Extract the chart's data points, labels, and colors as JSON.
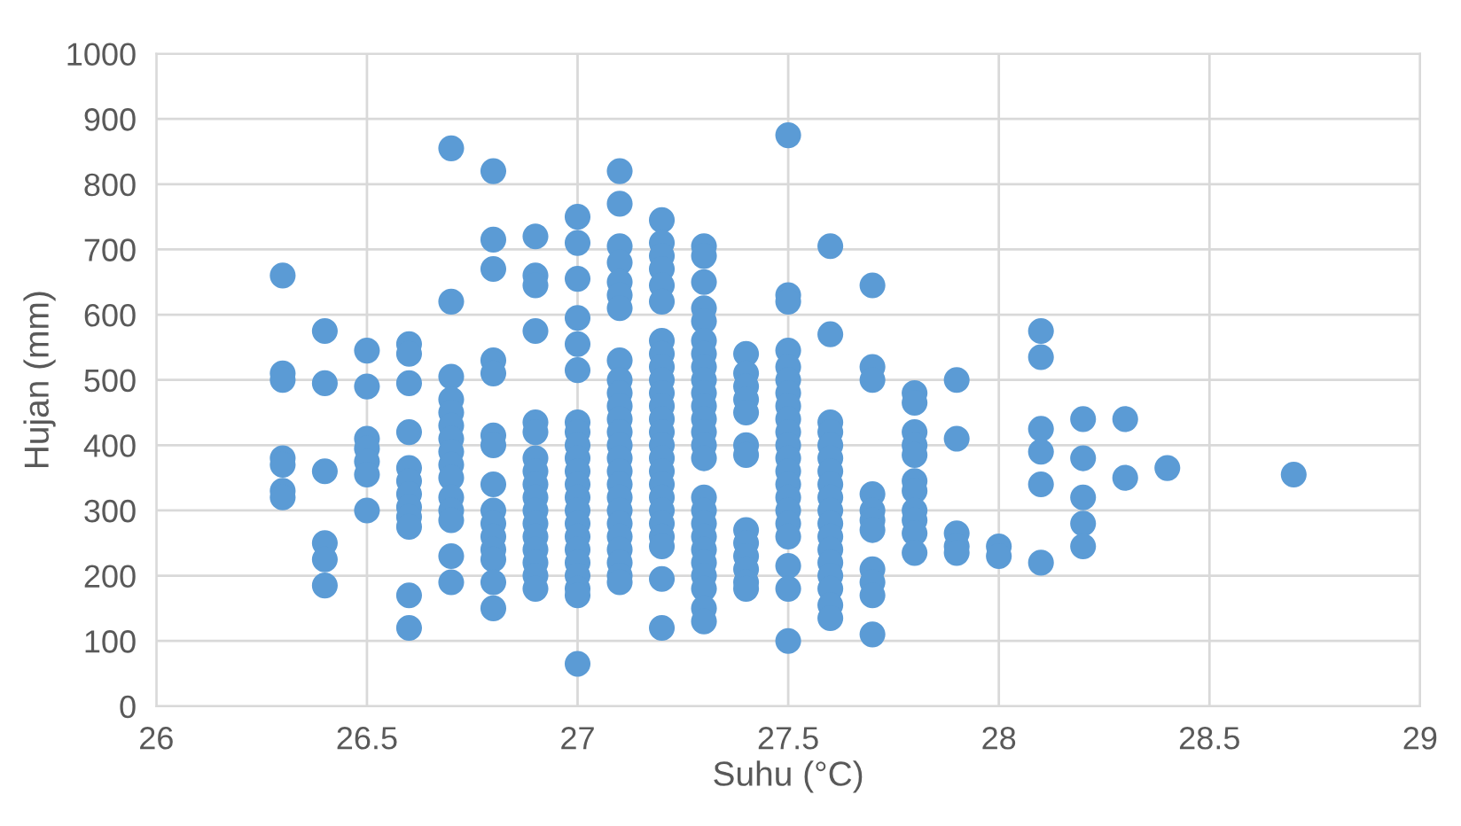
{
  "chart_data": {
    "type": "scatter",
    "xlabel": "Suhu (°C)",
    "ylabel": "Hujan (mm)",
    "xlim": [
      26,
      29
    ],
    "xticks": [
      26,
      26.5,
      27,
      27.5,
      28,
      28.5,
      29
    ],
    "ylim": [
      0,
      1000
    ],
    "yticks": [
      0,
      100,
      200,
      300,
      400,
      500,
      600,
      700,
      800,
      900,
      1000
    ],
    "grid": true,
    "marker": "circle",
    "series": [
      {
        "color": "#5b9bd5",
        "x": [
          26.3,
          26.3,
          26.3,
          26.3,
          26.3,
          26.3,
          26.3,
          26.4,
          26.4,
          26.4,
          26.4,
          26.4,
          26.4,
          26.5,
          26.5,
          26.5,
          26.5,
          26.5,
          26.5,
          26.5,
          26.6,
          26.6,
          26.6,
          26.6,
          26.6,
          26.6,
          26.6,
          26.6,
          26.6,
          26.6,
          26.6,
          26.6,
          26.7,
          26.7,
          26.7,
          26.7,
          26.7,
          26.7,
          26.7,
          26.7,
          26.7,
          26.7,
          26.7,
          26.7,
          26.7,
          26.7,
          26.7,
          26.8,
          26.8,
          26.8,
          26.8,
          26.8,
          26.8,
          26.8,
          26.8,
          26.8,
          26.8,
          26.8,
          26.8,
          26.8,
          26.8,
          26.8,
          26.9,
          26.9,
          26.9,
          26.9,
          26.9,
          26.9,
          26.9,
          26.9,
          26.9,
          26.9,
          26.9,
          26.9,
          26.9,
          26.9,
          26.9,
          26.9,
          26.9,
          27.0,
          27.0,
          27.0,
          27.0,
          27.0,
          27.0,
          27.0,
          27.0,
          27.0,
          27.0,
          27.0,
          27.0,
          27.0,
          27.0,
          27.0,
          27.0,
          27.0,
          27.0,
          27.0,
          27.0,
          27.0,
          27.0,
          27.1,
          27.1,
          27.1,
          27.1,
          27.1,
          27.1,
          27.1,
          27.1,
          27.1,
          27.1,
          27.1,
          27.1,
          27.1,
          27.1,
          27.1,
          27.1,
          27.1,
          27.1,
          27.1,
          27.1,
          27.1,
          27.1,
          27.1,
          27.1,
          27.1,
          27.2,
          27.2,
          27.2,
          27.2,
          27.2,
          27.2,
          27.2,
          27.2,
          27.2,
          27.2,
          27.2,
          27.2,
          27.2,
          27.2,
          27.2,
          27.2,
          27.2,
          27.2,
          27.2,
          27.2,
          27.2,
          27.2,
          27.2,
          27.2,
          27.2,
          27.3,
          27.3,
          27.3,
          27.3,
          27.3,
          27.3,
          27.3,
          27.3,
          27.3,
          27.3,
          27.3,
          27.3,
          27.3,
          27.3,
          27.3,
          27.3,
          27.3,
          27.3,
          27.3,
          27.3,
          27.3,
          27.3,
          27.3,
          27.3,
          27.3,
          27.4,
          27.4,
          27.4,
          27.4,
          27.4,
          27.4,
          27.4,
          27.4,
          27.4,
          27.4,
          27.4,
          27.4,
          27.4,
          27.5,
          27.5,
          27.5,
          27.5,
          27.5,
          27.5,
          27.5,
          27.5,
          27.5,
          27.5,
          27.5,
          27.5,
          27.5,
          27.5,
          27.5,
          27.5,
          27.5,
          27.5,
          27.5,
          27.5,
          27.5,
          27.6,
          27.6,
          27.6,
          27.6,
          27.6,
          27.6,
          27.6,
          27.6,
          27.6,
          27.6,
          27.6,
          27.6,
          27.6,
          27.6,
          27.6,
          27.6,
          27.6,
          27.6,
          27.7,
          27.7,
          27.7,
          27.7,
          27.7,
          27.7,
          27.7,
          27.7,
          27.7,
          27.7,
          27.7,
          27.8,
          27.8,
          27.8,
          27.8,
          27.8,
          27.8,
          27.8,
          27.8,
          27.8,
          27.8,
          27.8,
          27.9,
          27.9,
          27.9,
          27.9,
          27.9,
          28.0,
          28.0,
          28.1,
          28.1,
          28.1,
          28.1,
          28.1,
          28.1,
          28.2,
          28.2,
          28.2,
          28.2,
          28.2,
          28.3,
          28.3,
          28.4,
          28.7
        ],
        "values": [
          660,
          510,
          500,
          380,
          370,
          330,
          320,
          575,
          495,
          360,
          250,
          225,
          185,
          545,
          490,
          410,
          395,
          375,
          355,
          300,
          555,
          540,
          495,
          420,
          365,
          345,
          325,
          305,
          290,
          275,
          170,
          120,
          855,
          620,
          505,
          470,
          450,
          430,
          410,
          390,
          370,
          350,
          320,
          300,
          285,
          230,
          190,
          820,
          715,
          670,
          530,
          510,
          415,
          400,
          340,
          300,
          280,
          260,
          240,
          225,
          190,
          150,
          720,
          660,
          645,
          575,
          435,
          420,
          380,
          360,
          340,
          320,
          300,
          280,
          260,
          240,
          220,
          200,
          180,
          750,
          710,
          655,
          595,
          555,
          515,
          435,
          420,
          400,
          380,
          360,
          340,
          320,
          300,
          280,
          260,
          240,
          220,
          200,
          180,
          170,
          65,
          820,
          770,
          705,
          680,
          650,
          630,
          610,
          530,
          500,
          480,
          460,
          440,
          420,
          400,
          380,
          360,
          340,
          320,
          300,
          280,
          260,
          240,
          220,
          200,
          190,
          745,
          710,
          690,
          670,
          645,
          620,
          560,
          540,
          520,
          500,
          480,
          460,
          440,
          420,
          400,
          380,
          360,
          340,
          320,
          300,
          280,
          260,
          245,
          195,
          120,
          705,
          690,
          650,
          610,
          590,
          560,
          540,
          520,
          500,
          480,
          460,
          440,
          420,
          400,
          380,
          320,
          300,
          280,
          260,
          240,
          220,
          200,
          180,
          150,
          130,
          540,
          510,
          490,
          470,
          450,
          400,
          385,
          270,
          250,
          230,
          210,
          190,
          180,
          875,
          630,
          620,
          545,
          520,
          500,
          480,
          460,
          440,
          420,
          400,
          380,
          360,
          340,
          320,
          300,
          280,
          260,
          215,
          180,
          100,
          705,
          570,
          435,
          420,
          400,
          380,
          360,
          340,
          320,
          300,
          280,
          260,
          240,
          220,
          200,
          180,
          155,
          135,
          645,
          520,
          500,
          325,
          300,
          285,
          270,
          210,
          190,
          170,
          110,
          480,
          465,
          420,
          400,
          385,
          345,
          330,
          300,
          285,
          265,
          235,
          500,
          410,
          265,
          245,
          235,
          245,
          230,
          575,
          535,
          425,
          390,
          340,
          220,
          440,
          380,
          320,
          280,
          245,
          440,
          350,
          365,
          355
        ]
      }
    ]
  }
}
